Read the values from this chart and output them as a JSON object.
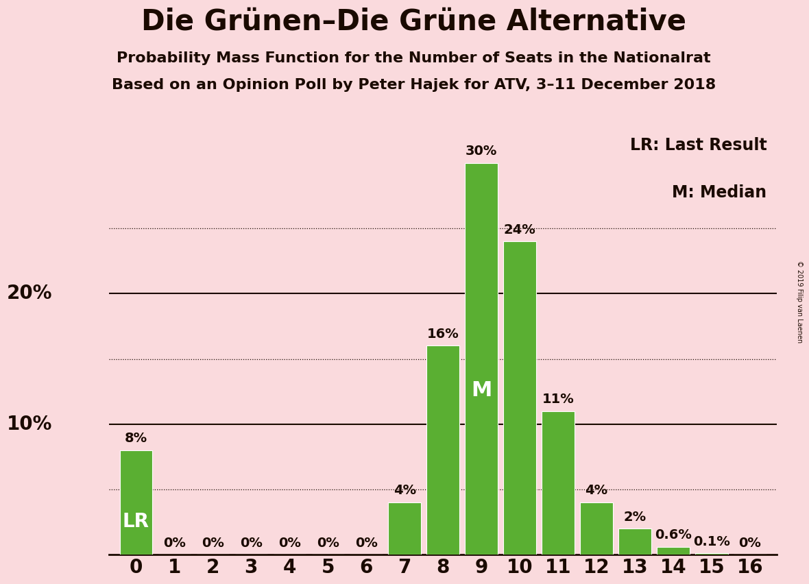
{
  "title": "Die Grünen–Die Grüne Alternative",
  "subtitle1": "Probability Mass Function for the Number of Seats in the Nationalrat",
  "subtitle2": "Based on an Opinion Poll by Peter Hajek for ATV, 3–11 December 2018",
  "copyright": "© 2019 Filip van Laenen",
  "categories": [
    0,
    1,
    2,
    3,
    4,
    5,
    6,
    7,
    8,
    9,
    10,
    11,
    12,
    13,
    14,
    15,
    16
  ],
  "values": [
    8,
    0,
    0,
    0,
    0,
    0,
    0,
    4,
    16,
    30,
    24,
    11,
    4,
    2,
    0.6,
    0.1,
    0
  ],
  "bar_color": "#5aaf32",
  "background_color": "#fadadd",
  "text_color": "#1a0a00",
  "title_fontsize": 30,
  "subtitle_fontsize": 16,
  "label_fontsize": 14,
  "tick_fontsize": 20,
  "ylabel_values": [
    10,
    20
  ],
  "ylim": [
    0,
    33
  ],
  "lr_seat": 0,
  "median_seat": 9,
  "legend_text1": "LR: Last Result",
  "legend_text2": "M: Median",
  "lr_label": "LR",
  "m_label": "M",
  "dotted_line_values": [
    5,
    15,
    25
  ],
  "solid_line_values": [
    10,
    20
  ]
}
